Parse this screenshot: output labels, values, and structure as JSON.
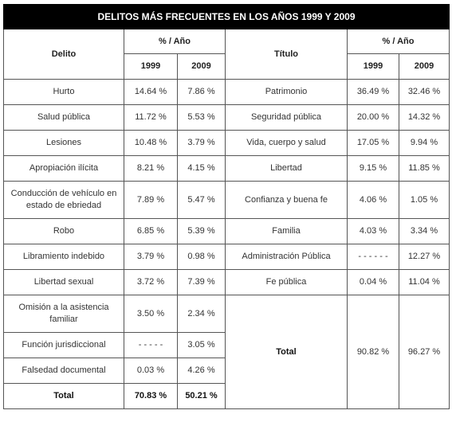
{
  "title": "DELITOS MÁS FRECUENTES EN LOS AÑOS 1999 Y 2009",
  "header": {
    "left_label": "Delito",
    "left_group": "% / Año",
    "right_label": "Título",
    "right_group": "% / Año",
    "years": [
      "1999",
      "2009",
      "1999",
      "2009"
    ]
  },
  "left": {
    "rows": [
      [
        "Hurto",
        "14.64 %",
        "7.86 %"
      ],
      [
        "Salud pública",
        "11.72 %",
        "5.53 %"
      ],
      [
        "Lesiones",
        "10.48 %",
        "3.79 %"
      ],
      [
        "Apropiación ilícita",
        "8.21 %",
        "4.15 %"
      ],
      [
        "Conducción de vehículo en estado de ebriedad",
        "7.89 %",
        "5.47 %"
      ],
      [
        "Robo",
        "6.85 %",
        "5.39 %"
      ],
      [
        "Libramiento indebido",
        "3.79 %",
        "0.98 %"
      ],
      [
        "Libertad sexual",
        "3.72 %",
        "7.39 %"
      ],
      [
        "Omisión a la asistencia familiar",
        "3.50 %",
        "2.34 %"
      ],
      [
        "Función jurisdiccional",
        "- - - - -",
        "3.05 %"
      ],
      [
        "Falsedad documental",
        "0.03 %",
        "4.26 %"
      ],
      [
        "Total",
        "70.83 %",
        "50.21 %"
      ]
    ]
  },
  "right": {
    "rows": [
      [
        "Patrimonio",
        "36.49 %",
        "32.46 %"
      ],
      [
        "Seguridad pública",
        "20.00 %",
        "14.32 %"
      ],
      [
        "Vida, cuerpo y salud",
        "17.05 %",
        "9.94 %"
      ],
      [
        "Libertad",
        "9.15 %",
        "11.85 %"
      ],
      [
        "Confianza y buena fe",
        "4.06 %",
        "1.05 %"
      ],
      [
        "Familia",
        "4.03 %",
        "3.34 %"
      ],
      [
        "Administración Pública",
        "- - - - - -",
        "12.27 %"
      ],
      [
        "Fe pública",
        "0.04 %",
        "11.04 %"
      ],
      [
        "Total",
        "90.82 %",
        "96.27 %"
      ]
    ]
  }
}
